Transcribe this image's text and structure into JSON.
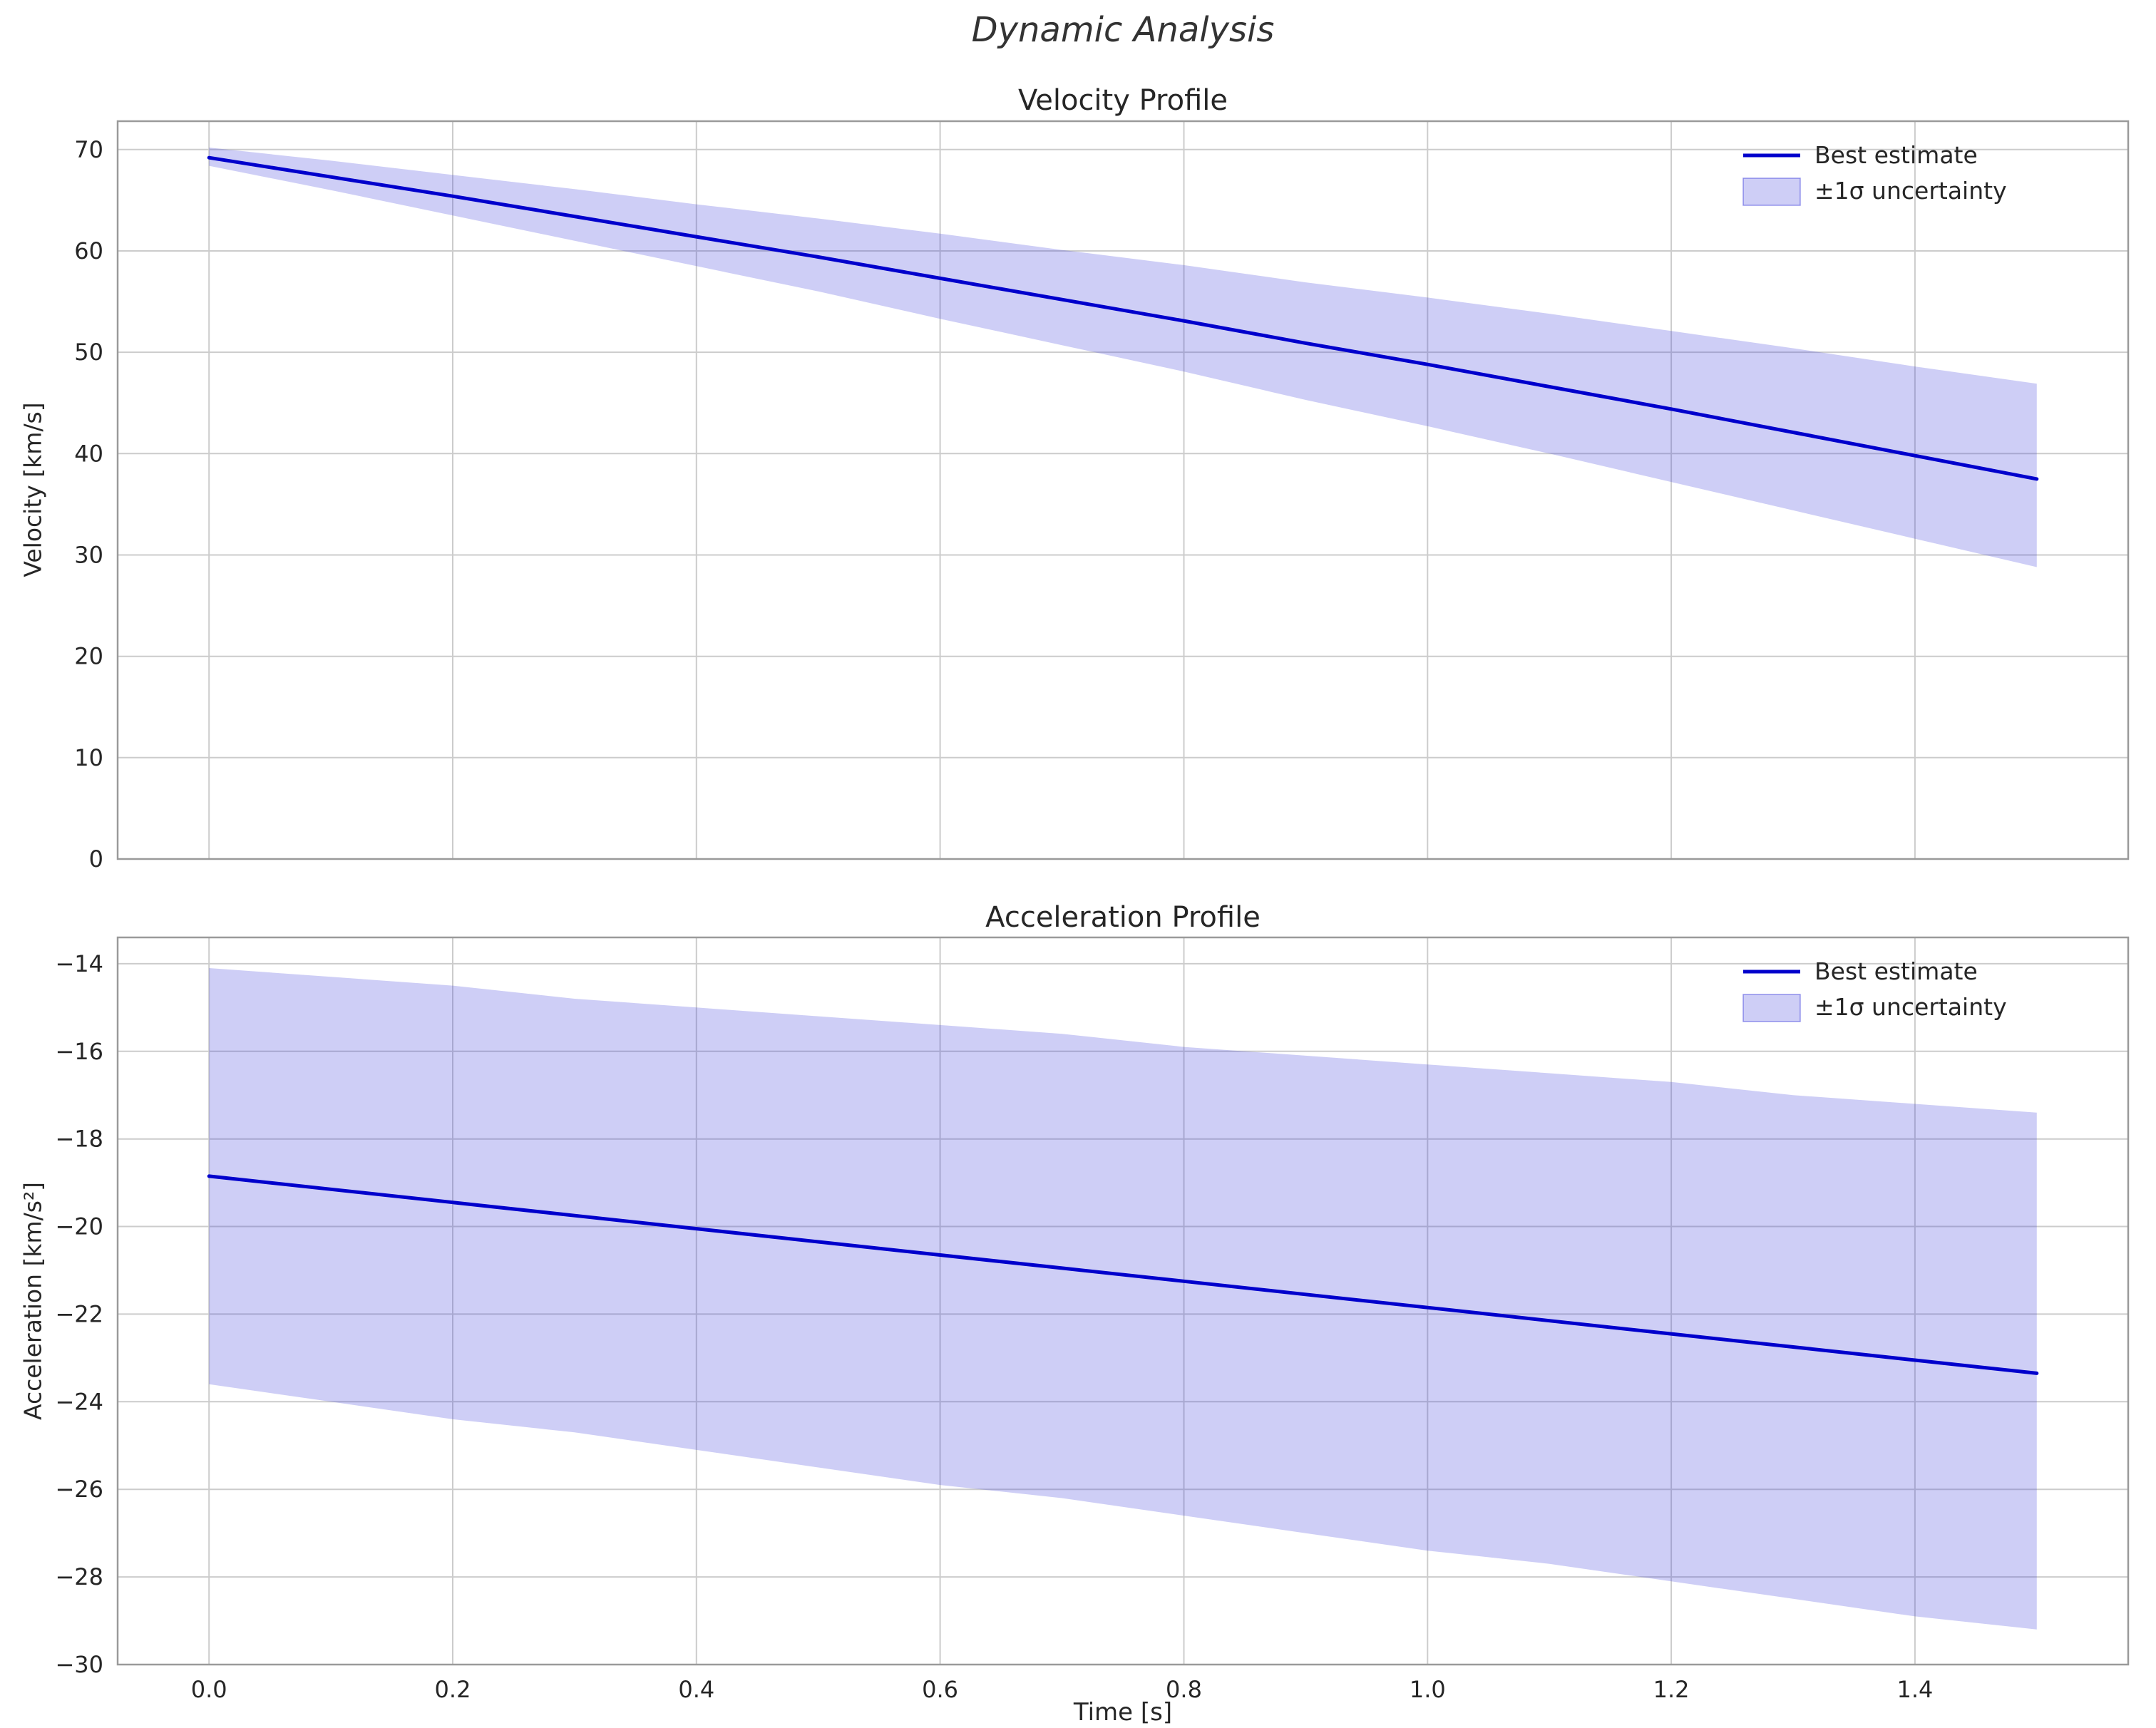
{
  "figure": {
    "title": "Dynamic Analysis"
  },
  "colors": {
    "line": "#0000cc",
    "band_fill": "rgba(60,60,220,0.25)",
    "band_edge": "rgba(60,60,220,0.5)",
    "grid": "#cccccc",
    "spine": "#9a9a9a",
    "text": "#262626"
  },
  "chart_data": [
    {
      "type": "line",
      "title": "Velocity Profile",
      "xlabel": "",
      "ylabel": "Velocity [km/s]",
      "legend": [
        "Best estimate",
        "±1σ uncertainty"
      ],
      "legend_position": "upper right",
      "grid": true,
      "xlim": [
        -0.075,
        1.575
      ],
      "ylim": [
        0,
        72.8
      ],
      "xticks": [
        0.0,
        0.2,
        0.4,
        0.6,
        0.8,
        1.0,
        1.2,
        1.4
      ],
      "xtick_labels": null,
      "yticks": [
        0,
        10,
        20,
        30,
        40,
        50,
        60,
        70
      ],
      "ytick_labels": [
        "0",
        "10",
        "20",
        "30",
        "40",
        "50",
        "60",
        "70"
      ],
      "x": [
        0.0,
        0.1,
        0.2,
        0.3,
        0.4,
        0.5,
        0.6,
        0.7,
        0.8,
        0.9,
        1.0,
        1.1,
        1.2,
        1.3,
        1.4,
        1.5
      ],
      "series": [
        {
          "name": "Best estimate",
          "values": [
            69.2,
            67.3,
            65.4,
            63.4,
            61.4,
            59.4,
            57.3,
            55.2,
            53.1,
            50.9,
            48.8,
            46.6,
            44.4,
            42.1,
            39.8,
            37.5
          ]
        }
      ],
      "band": {
        "name": "±1σ uncertainty",
        "upper": [
          70.2,
          68.9,
          67.5,
          66.1,
          64.6,
          63.2,
          61.7,
          60.1,
          58.6,
          56.9,
          55.4,
          53.8,
          52.1,
          50.4,
          48.6,
          46.9
        ],
        "lower": [
          68.4,
          66.0,
          63.5,
          61.0,
          58.5,
          56.0,
          53.3,
          50.7,
          48.1,
          45.3,
          42.7,
          40.0,
          37.2,
          34.4,
          31.6,
          28.8
        ]
      }
    },
    {
      "type": "line",
      "title": "Acceleration Profile",
      "xlabel": "Time [s]",
      "ylabel": "Acceleration [km/s²]",
      "legend": [
        "Best estimate",
        "±1σ uncertainty"
      ],
      "legend_position": "upper right",
      "grid": true,
      "xlim": [
        -0.075,
        1.575
      ],
      "ylim": [
        -30.0,
        -13.4
      ],
      "xticks": [
        0.0,
        0.2,
        0.4,
        0.6,
        0.8,
        1.0,
        1.2,
        1.4
      ],
      "xtick_labels": [
        "0.0",
        "0.2",
        "0.4",
        "0.6",
        "0.8",
        "1.0",
        "1.2",
        "1.4"
      ],
      "yticks": [
        -30,
        -28,
        -26,
        -24,
        -22,
        -20,
        -18,
        -16,
        -14
      ],
      "ytick_labels": [
        "−30",
        "−28",
        "−26",
        "−24",
        "−22",
        "−20",
        "−18",
        "−16",
        "−14"
      ],
      "x": [
        0.0,
        0.1,
        0.2,
        0.3,
        0.4,
        0.5,
        0.6,
        0.7,
        0.8,
        0.9,
        1.0,
        1.1,
        1.2,
        1.3,
        1.4,
        1.5
      ],
      "series": [
        {
          "name": "Best estimate",
          "values": [
            -18.85,
            -19.15,
            -19.45,
            -19.75,
            -20.05,
            -20.35,
            -20.65,
            -20.95,
            -21.25,
            -21.55,
            -21.85,
            -22.15,
            -22.45,
            -22.75,
            -23.05,
            -23.35
          ]
        }
      ],
      "band": {
        "name": "±1σ uncertainty",
        "upper": [
          -14.1,
          -14.3,
          -14.5,
          -14.8,
          -15.0,
          -15.2,
          -15.4,
          -15.6,
          -15.9,
          -16.1,
          -16.3,
          -16.5,
          -16.7,
          -17.0,
          -17.2,
          -17.4
        ],
        "lower": [
          -23.6,
          -24.0,
          -24.4,
          -24.7,
          -25.1,
          -25.5,
          -25.9,
          -26.2,
          -26.6,
          -27.0,
          -27.4,
          -27.7,
          -28.1,
          -28.5,
          -28.9,
          -29.2
        ]
      }
    }
  ]
}
